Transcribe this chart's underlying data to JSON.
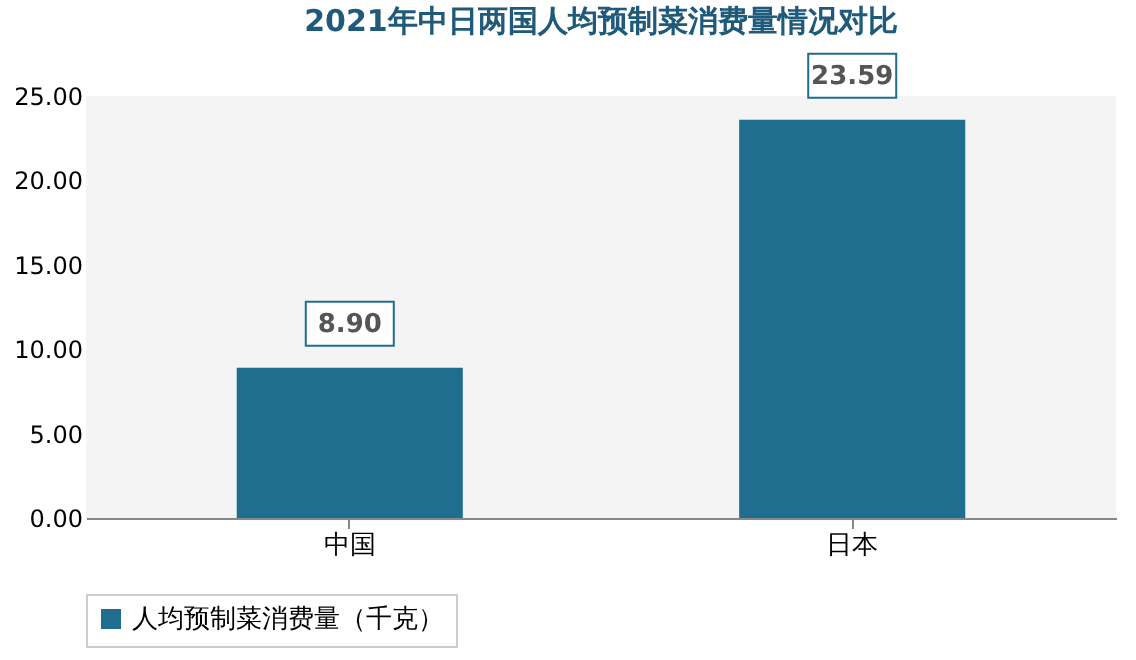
{
  "chart_data": {
    "type": "bar",
    "title": "2021年中日两国人均预制菜消费量情况对比",
    "categories": [
      "中国",
      "日本"
    ],
    "series": [
      {
        "name": "人均预制菜消费量（千克）",
        "color": "#1f6e8f",
        "values": [
          8.9,
          23.59
        ],
        "value_labels": [
          "8.90",
          "23.59"
        ]
      }
    ],
    "ylim": [
      0,
      25
    ],
    "yticks": [
      {
        "value": 0,
        "label": "0.00"
      },
      {
        "value": 5,
        "label": "5.00"
      },
      {
        "value": 10,
        "label": "10.00"
      },
      {
        "value": 15,
        "label": "15.00"
      },
      {
        "value": 20,
        "label": "20.00"
      },
      {
        "value": 25,
        "label": "25.00"
      }
    ],
    "grid": false,
    "legend": "bottom"
  }
}
